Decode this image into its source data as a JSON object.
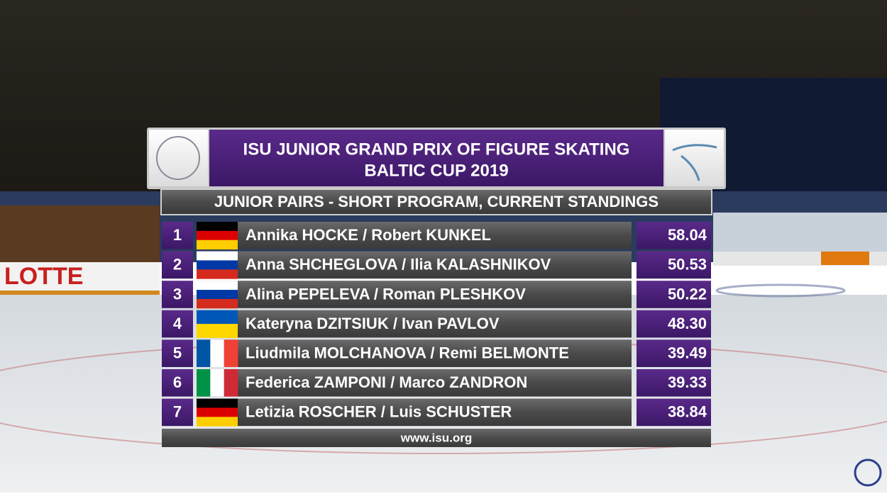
{
  "broadcast": {
    "venue_sign": "LOTTE"
  },
  "header": {
    "title_line1": "ISU JUNIOR GRAND PRIX OF FIGURE SKATING",
    "title_line2": "BALTIC CUP 2019"
  },
  "subtitle": "JUNIOR PAIRS - SHORT PROGRAM, CURRENT STANDINGS",
  "table": {
    "rows": [
      [
        "1",
        "Annika HOCKE / Robert KUNKEL",
        "58.04"
      ],
      [
        "2",
        "Anna SHCHEGLOVA / Ilia KALASHNIKOV",
        "50.53"
      ],
      [
        "3",
        "Alina PEPELEVA / Roman PLESHKOV",
        "50.22"
      ],
      [
        "4",
        "Kateryna DZITSIUK / Ivan PAVLOV",
        "48.30"
      ],
      [
        "5",
        "Liudmila MOLCHANOVA / Remi BELMONTE",
        "39.49"
      ],
      [
        "6",
        "Federica ZAMPONI / Marco ZANDRON",
        "39.33"
      ],
      [
        "7",
        "Letizia ROSCHER / Luis SCHUSTER",
        "38.84"
      ]
    ]
  },
  "footer": "www.isu.org"
}
